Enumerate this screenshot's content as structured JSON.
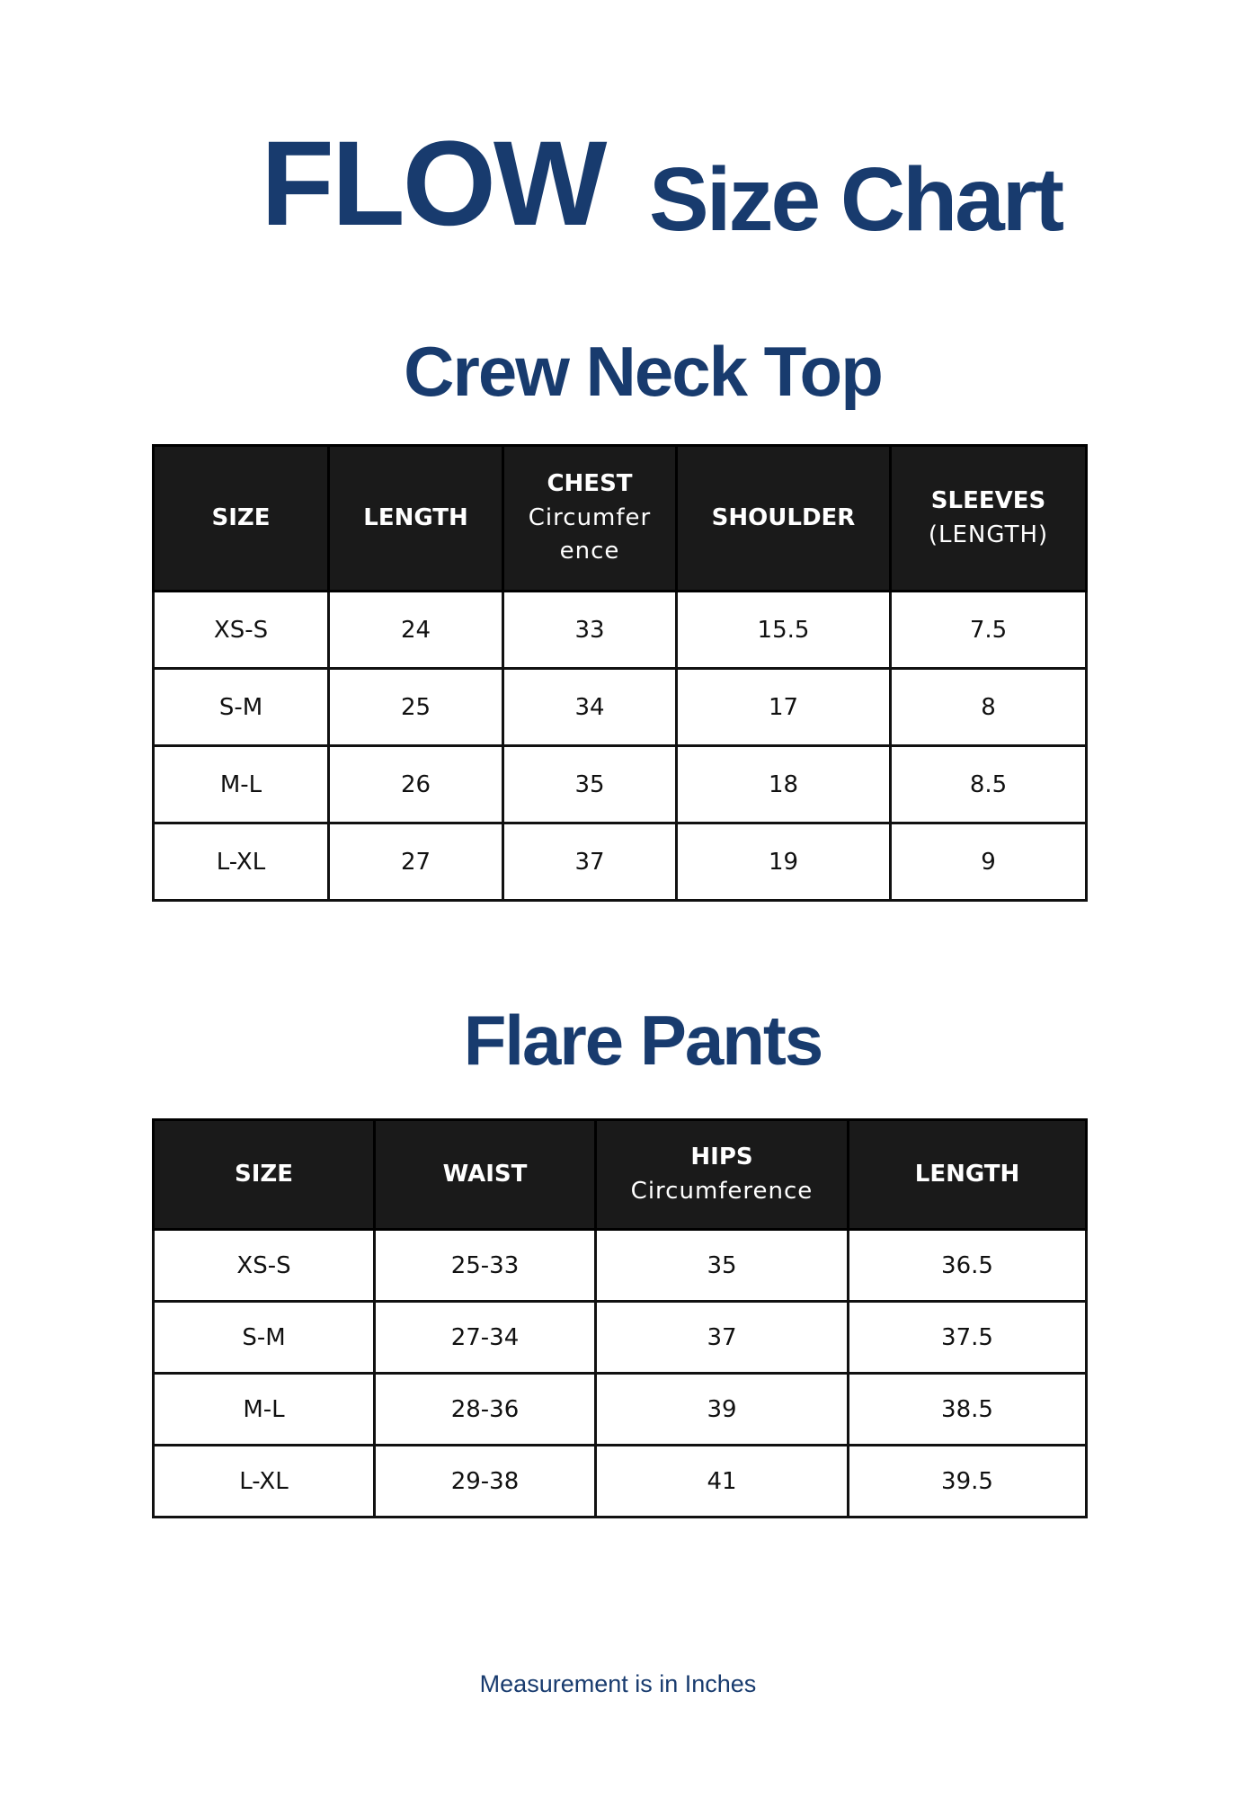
{
  "header": {
    "brand": "FLOW",
    "title": "Size Chart"
  },
  "colors": {
    "accent": "#183b6e",
    "header_bg": "#1a1a1a"
  },
  "top_table": {
    "title": "Crew Neck Top",
    "columns": [
      {
        "label": "SIZE",
        "sub": ""
      },
      {
        "label": "LENGTH",
        "sub": ""
      },
      {
        "label": "CHEST",
        "sub": "Circumfer ence"
      },
      {
        "label": "SHOULDER",
        "sub": ""
      },
      {
        "label": "SLEEVES",
        "sub": "(LENGTH)"
      }
    ],
    "rows": [
      [
        "XS-S",
        "24",
        "33",
        "15.5",
        "7.5"
      ],
      [
        "S-M",
        "25",
        "34",
        "17",
        "8"
      ],
      [
        "M-L",
        "26",
        "35",
        "18",
        "8.5"
      ],
      [
        "L-XL",
        "27",
        "37",
        "19",
        "9"
      ]
    ]
  },
  "pants_table": {
    "title": "Flare Pants",
    "columns": [
      {
        "label": "SIZE",
        "sub": ""
      },
      {
        "label": "WAIST",
        "sub": ""
      },
      {
        "label": "HIPS",
        "sub": "Circumference"
      },
      {
        "label": "LENGTH",
        "sub": ""
      }
    ],
    "rows": [
      [
        "XS-S",
        "25-33",
        "35",
        "36.5"
      ],
      [
        "S-M",
        "27-34",
        "37",
        "37.5"
      ],
      [
        "M-L",
        "28-36",
        "39",
        "38.5"
      ],
      [
        "L-XL",
        "29-38",
        "41",
        "39.5"
      ]
    ]
  },
  "footer": {
    "note": "Measurement is in Inches"
  }
}
